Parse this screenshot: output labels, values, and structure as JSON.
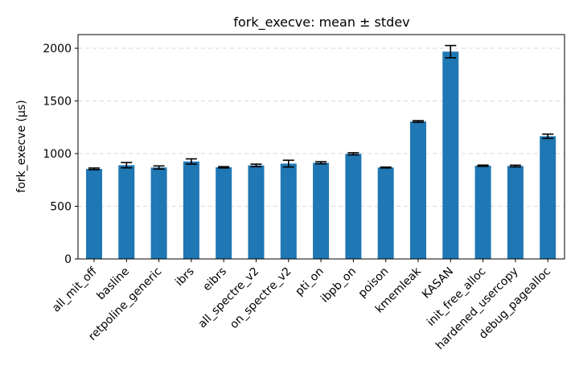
{
  "chart_data": {
    "type": "bar",
    "title": "fork_execve: mean ± stdev",
    "xlabel": "",
    "ylabel": "fork_execve (µs)",
    "ylim": [
      0,
      2130
    ],
    "yticks": [
      0,
      500,
      1000,
      1500,
      2000
    ],
    "grid": "y-dashed",
    "bar_color": "#1f77b4",
    "categories": [
      "all_mit_off",
      "basline",
      "retpoline_generic",
      "ibrs",
      "eibrs",
      "all_spectre_v2",
      "on_spectre_v2",
      "pti_on",
      "ibpb_on",
      "poison",
      "kmemleak",
      "KASAN",
      "init_free_alloc",
      "hardened_usercopy",
      "debug_pagealloc"
    ],
    "values": [
      855,
      890,
      868,
      925,
      870,
      888,
      905,
      913,
      998,
      868,
      1305,
      1968,
      885,
      882,
      1165
    ],
    "errors": [
      8,
      25,
      15,
      25,
      6,
      12,
      32,
      10,
      10,
      4,
      8,
      58,
      6,
      8,
      20
    ]
  }
}
